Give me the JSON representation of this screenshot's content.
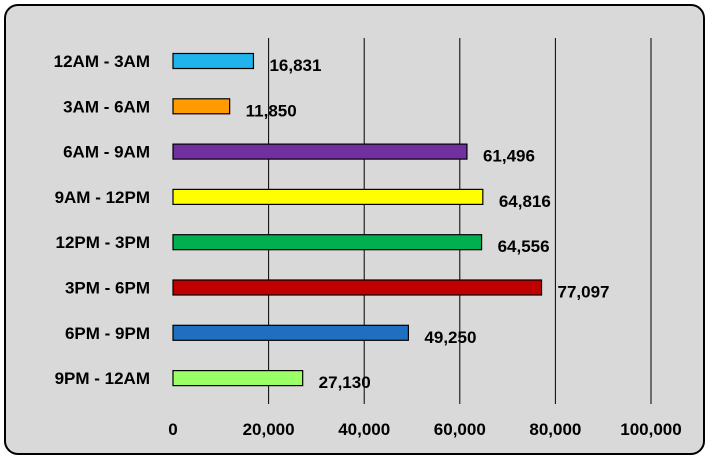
{
  "chart_data": {
    "type": "bar",
    "orientation": "horizontal",
    "categories": [
      "12AM - 3AM",
      "3AM - 6AM",
      "6AM - 9AM",
      "9AM - 12PM",
      "12PM - 3PM",
      "3PM - 6PM",
      "6PM - 9PM",
      "9PM - 12AM"
    ],
    "values": [
      16831,
      11850,
      61496,
      64816,
      64556,
      77097,
      49250,
      27130
    ],
    "value_labels": [
      "16,831",
      "11,850",
      "61,496",
      "64,816",
      "64,556",
      "77,097",
      "49,250",
      "27,130"
    ],
    "colors": [
      "#1fb4ec",
      "#ff9a00",
      "#7030a0",
      "#ffff00",
      "#00b050",
      "#c00000",
      "#1f6fc0",
      "#9bff66"
    ],
    "xlim": [
      0,
      100000
    ],
    "xticks": [
      0,
      20000,
      40000,
      60000,
      80000,
      100000
    ],
    "xtick_labels": [
      "0",
      "20,000",
      "40,000",
      "60,000",
      "80,000",
      "100,000"
    ],
    "grid": "vertical",
    "legend": "none",
    "background": "#d9d9d9"
  }
}
